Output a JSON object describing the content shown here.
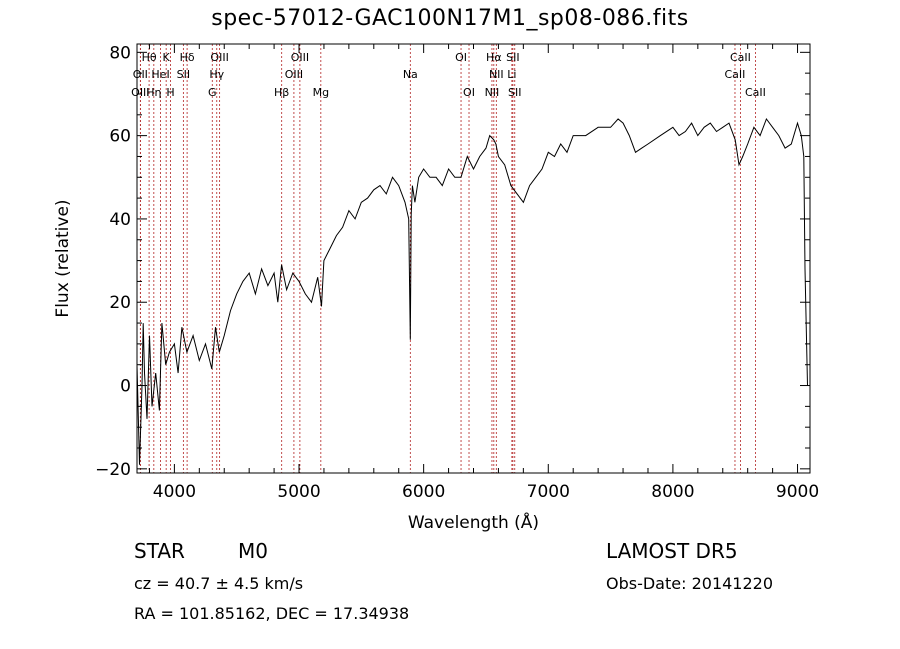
{
  "chart_data": {
    "type": "line",
    "title": "spec-57012-GAC100N17M1_sp08-086.fits",
    "xlabel": "Wavelength (Å)",
    "ylabel": "Flux (relative)",
    "xlim": [
      3700,
      9100
    ],
    "ylim": [
      -21,
      82
    ],
    "x_ticks": [
      "4000",
      "5000",
      "6000",
      "7000",
      "8000",
      "9000"
    ],
    "y_ticks": [
      "−20",
      "0",
      "20",
      "40",
      "60",
      "80"
    ],
    "grid": false,
    "series": [
      {
        "color": "#000000",
        "x": [
          3700,
          3720,
          3740,
          3750,
          3760,
          3780,
          3800,
          3820,
          3850,
          3880,
          3900,
          3930,
          3960,
          4000,
          4030,
          4060,
          4100,
          4150,
          4200,
          4250,
          4300,
          4330,
          4360,
          4400,
          4450,
          4500,
          4550,
          4600,
          4650,
          4700,
          4750,
          4800,
          4830,
          4860,
          4900,
          4950,
          5000,
          5050,
          5100,
          5150,
          5180,
          5200,
          5250,
          5300,
          5350,
          5400,
          5450,
          5500,
          5550,
          5600,
          5650,
          5700,
          5750,
          5800,
          5850,
          5880,
          5893,
          5900,
          5910,
          5930,
          5960,
          6000,
          6050,
          6100,
          6150,
          6200,
          6250,
          6300,
          6350,
          6400,
          6450,
          6500,
          6530,
          6563,
          6580,
          6600,
          6650,
          6700,
          6750,
          6800,
          6850,
          6900,
          6950,
          7000,
          7050,
          7100,
          7150,
          7200,
          7300,
          7400,
          7500,
          7560,
          7600,
          7650,
          7700,
          7750,
          7800,
          7900,
          8000,
          8050,
          8100,
          8150,
          8200,
          8250,
          8300,
          8350,
          8400,
          8450,
          8500,
          8530,
          8560,
          8600,
          8650,
          8700,
          8750,
          8800,
          8850,
          8900,
          8950,
          9000,
          9030,
          9050,
          9060,
          9080
        ],
        "y": [
          5,
          -19,
          0,
          15,
          3,
          -8,
          12,
          -5,
          3,
          -6,
          15,
          5,
          8,
          10,
          3,
          14,
          8,
          12,
          6,
          10,
          4,
          14,
          8,
          12,
          18,
          22,
          25,
          27,
          22,
          28,
          24,
          27,
          20,
          29,
          23,
          27,
          25,
          22,
          20,
          26,
          19,
          30,
          33,
          36,
          38,
          42,
          40,
          44,
          45,
          47,
          48,
          46,
          50,
          48,
          44,
          40,
          11,
          41,
          48,
          44,
          50,
          52,
          50,
          50,
          48,
          52,
          50,
          50,
          55,
          52,
          55,
          57,
          60,
          59,
          58,
          55,
          53,
          48,
          46,
          44,
          48,
          50,
          52,
          56,
          55,
          58,
          56,
          60,
          60,
          62,
          62,
          64,
          63,
          60,
          56,
          57,
          58,
          60,
          62,
          60,
          61,
          63,
          60,
          62,
          63,
          61,
          62,
          63,
          59,
          53,
          55,
          58,
          62,
          60,
          64,
          62,
          60,
          57,
          58,
          63,
          60,
          55,
          28,
          0
        ]
      }
    ]
  },
  "lines": [
    {
      "label": "Hθ",
      "x": 3797,
      "row": 1
    },
    {
      "label": "K",
      "x": 3934,
      "row": 1
    },
    {
      "label": "Hδ",
      "x": 4102,
      "row": 1
    },
    {
      "label": "OIII",
      "x": 4363,
      "row": 1
    },
    {
      "label": "OIII",
      "x": 5007,
      "row": 1
    },
    {
      "label": "OI",
      "x": 6300,
      "row": 1
    },
    {
      "label": "Hα",
      "x": 6563,
      "row": 1
    },
    {
      "label": "SII",
      "x": 6716,
      "row": 1
    },
    {
      "label": "CaII",
      "x": 8542,
      "row": 1
    },
    {
      "label": "OII",
      "x": 3727,
      "row": 2
    },
    {
      "label": "HeI",
      "x": 3889,
      "row": 2
    },
    {
      "label": "SII",
      "x": 4072,
      "row": 2
    },
    {
      "label": "Hγ",
      "x": 4340,
      "row": 2
    },
    {
      "label": "OIII",
      "x": 4959,
      "row": 2
    },
    {
      "label": "Na",
      "x": 5893,
      "row": 2
    },
    {
      "label": "NII",
      "x": 6583,
      "row": 2
    },
    {
      "label": "Li",
      "x": 6708,
      "row": 2
    },
    {
      "label": "CaII",
      "x": 8498,
      "row": 2
    },
    {
      "label": "OIII",
      "x": 3727,
      "row": 3
    },
    {
      "label": "Hη",
      "x": 3835,
      "row": 3
    },
    {
      "label": "H",
      "x": 3969,
      "row": 3
    },
    {
      "label": "G",
      "x": 4304,
      "row": 3
    },
    {
      "label": "Hβ",
      "x": 4861,
      "row": 3
    },
    {
      "label": "Mg",
      "x": 5175,
      "row": 3
    },
    {
      "label": "OI",
      "x": 6364,
      "row": 3
    },
    {
      "label": "NII",
      "x": 6548,
      "row": 3
    },
    {
      "label": "SII",
      "x": 6731,
      "row": 3
    },
    {
      "label": "CaII",
      "x": 8662,
      "row": 3
    }
  ],
  "info": {
    "class": "STAR",
    "subclass": "M0",
    "survey": "LAMOST DR5",
    "cz": "cz = 40.7 ± 4.5 km/s",
    "obs_date": "Obs-Date: 20141220",
    "radec": "RA = 101.85162, DEC =  17.34938"
  }
}
